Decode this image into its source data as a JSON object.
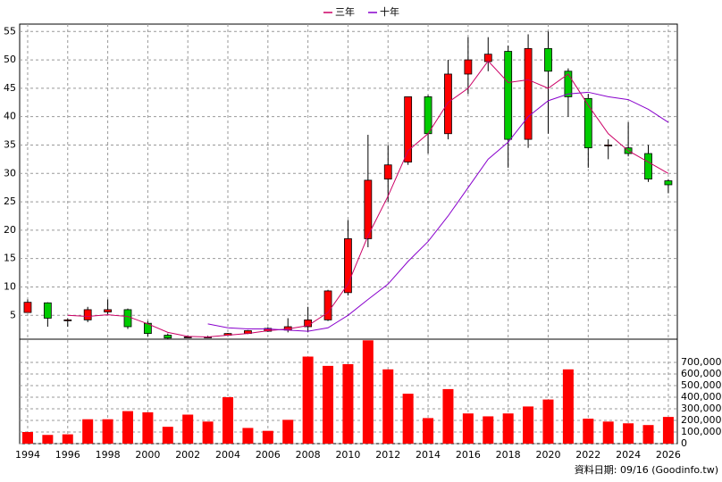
{
  "chart_data": [
    {
      "type": "candlestick",
      "x": [
        1994,
        1995,
        1996,
        1997,
        1998,
        1999,
        2000,
        2001,
        2002,
        2003,
        2004,
        2005,
        2006,
        2007,
        2008,
        2009,
        2010,
        2011,
        2012,
        2013,
        2014,
        2015,
        2016,
        2017,
        2018,
        2019,
        2020,
        2021,
        2022,
        2023,
        2024,
        2025,
        2026
      ],
      "open": [
        5.5,
        7.2,
        4.2,
        4.2,
        5.6,
        6,
        3.6,
        1.5,
        1.2,
        1.2,
        1.5,
        1.8,
        2.2,
        2.4,
        3,
        4.2,
        9,
        18.5,
        29,
        32,
        43.5,
        37,
        47.5,
        49.7,
        51.5,
        36,
        52,
        48,
        43.2,
        35,
        34.5,
        33.5,
        28.7
      ],
      "high": [
        7.8,
        7.3,
        4.5,
        6.5,
        7.8,
        6.2,
        4,
        1.8,
        1.4,
        1.4,
        1.9,
        2.4,
        2.9,
        4.5,
        6.5,
        9.5,
        21.8,
        36.8,
        35,
        43.5,
        43.8,
        50,
        54,
        54,
        52.5,
        54.5,
        55,
        48.5,
        44,
        36,
        39,
        35,
        29
      ],
      "low": [
        5.5,
        3,
        3,
        3.8,
        5.2,
        2.6,
        1.3,
        0.9,
        1,
        1,
        1.4,
        1.7,
        2.1,
        2,
        2,
        4,
        8.5,
        17,
        25,
        31.5,
        33.5,
        36,
        44,
        48,
        31,
        34.5,
        37,
        40,
        31,
        32.5,
        33,
        28.5,
        26.5
      ],
      "close": [
        7.3,
        4.5,
        4.2,
        6,
        6,
        3,
        1.8,
        1,
        1.2,
        1.2,
        1.8,
        2.3,
        2.7,
        3,
        4.2,
        9.3,
        18.5,
        28.8,
        31.5,
        43.5,
        37,
        47.5,
        50,
        51,
        36,
        52,
        48,
        43.5,
        34.5,
        35,
        33.5,
        29,
        28
      ],
      "up_color": "#ff0000",
      "down_color": "#00cc00",
      "series": [
        {
          "name": "三年",
          "color": "#cc0066",
          "values": [
            null,
            null,
            5,
            4.8,
            5.1,
            4.8,
            3.5,
            2,
            1.3,
            1.2,
            1.5,
            1.8,
            2.3,
            2.6,
            3.2,
            5.5,
            10.5,
            19,
            26,
            34,
            37,
            42.5,
            45,
            49.8,
            46,
            46.5,
            45,
            47.5,
            42,
            37,
            34,
            32,
            30
          ]
        },
        {
          "name": "十年",
          "color": "#8800cc",
          "values": [
            null,
            null,
            null,
            null,
            null,
            null,
            null,
            null,
            null,
            3.5,
            2.8,
            2.6,
            2.6,
            2.4,
            2.2,
            2.8,
            5,
            7.8,
            10.5,
            14.5,
            18,
            22.5,
            27.5,
            32.5,
            35.5,
            40,
            42.8,
            44,
            44.3,
            43.5,
            43,
            41.3,
            39
          ]
        }
      ],
      "xlim": [
        1993.6,
        2026.45
      ],
      "ylim": [
        0.8,
        56.3
      ],
      "yticks": [
        5,
        10,
        15,
        20,
        25,
        30,
        35,
        40,
        45,
        50,
        55
      ],
      "grid": true
    },
    {
      "type": "bar",
      "x": [
        1994,
        1995,
        1996,
        1997,
        1998,
        1999,
        2000,
        2001,
        2002,
        2003,
        2004,
        2005,
        2006,
        2007,
        2008,
        2009,
        2010,
        2011,
        2012,
        2013,
        2014,
        2015,
        2016,
        2017,
        2018,
        2019,
        2020,
        2021,
        2022,
        2023,
        2024,
        2025,
        2026
      ],
      "values": [
        100000,
        75000,
        80000,
        210000,
        210000,
        280000,
        270000,
        145000,
        250000,
        190000,
        400000,
        135000,
        110000,
        205000,
        750000,
        670000,
        685000,
        890000,
        640000,
        430000,
        220000,
        470000,
        260000,
        235000,
        260000,
        320000,
        380000,
        640000,
        215000,
        190000,
        175000,
        160000,
        230000
      ],
      "color": "#ff0000",
      "xlim": [
        1993.6,
        2026.45
      ],
      "ylim": [
        0,
        900000
      ],
      "xticks": [
        1994,
        1996,
        1998,
        2000,
        2002,
        2004,
        2006,
        2008,
        2010,
        2012,
        2014,
        2016,
        2018,
        2020,
        2022,
        2024,
        2026
      ],
      "yticks": [
        0,
        {
          "value": 100000,
          "label": "100,000"
        },
        {
          "value": 200000,
          "label": "200,000"
        },
        {
          "value": 300000,
          "label": "300,000"
        },
        {
          "value": 400000,
          "label": "400,000"
        },
        {
          "value": 500000,
          "label": "500,000"
        },
        {
          "value": 600000,
          "label": "600,000"
        },
        {
          "value": 700000,
          "label": "700,000"
        }
      ],
      "grid": true
    }
  ],
  "footer": "資料日期: 09/16  (Goodinfo.tw)"
}
